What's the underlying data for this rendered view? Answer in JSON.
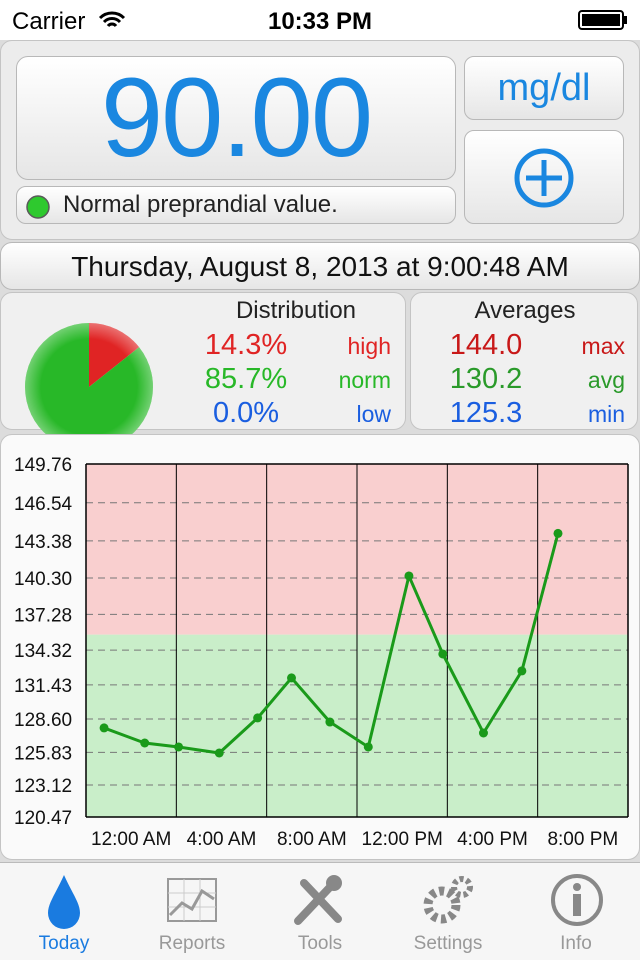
{
  "status_bar": {
    "carrier": "Carrier",
    "time": "10:33 PM"
  },
  "reading": {
    "value": "90.00",
    "unit": "mg/dl",
    "status": "Normal preprandial value."
  },
  "date": "Thursday, August 8, 2013 at 9:00:48 AM",
  "distribution": {
    "title": "Distribution",
    "values": [
      14.3,
      85.7,
      0.0
    ],
    "value_labels": [
      "14.3%",
      "85.7%",
      "0.0%"
    ],
    "labels": [
      "high",
      "norm",
      "low"
    ],
    "colors": [
      "#e02424",
      "#28b828",
      "#1a5ee0"
    ]
  },
  "averages": {
    "title": "Averages",
    "rows": [
      {
        "value": "144.0",
        "label": "max"
      },
      {
        "value": "130.2",
        "label": "avg"
      },
      {
        "value": "125.3",
        "label": "min"
      }
    ]
  },
  "chart_data": {
    "type": "line",
    "x": [
      0.8,
      2.6,
      4.1,
      5.9,
      7.6,
      9.1,
      10.8,
      12.5,
      14.3,
      15.8,
      17.6,
      19.3,
      20.9
    ],
    "values": [
      127.86,
      126.61,
      126.28,
      125.78,
      128.69,
      132.01,
      128.35,
      126.28,
      140.47,
      134.0,
      127.44,
      132.59,
      144.0
    ],
    "color": "#1a9a1a",
    "xlim": [
      0,
      24
    ],
    "xticks": [
      {
        "value": 0,
        "label": "12:00 AM"
      },
      {
        "value": 4,
        "label": "4:00 AM"
      },
      {
        "value": 8,
        "label": "8:00 AM"
      },
      {
        "value": 12,
        "label": "12:00 PM"
      },
      {
        "value": 16,
        "label": "4:00 PM"
      },
      {
        "value": 20,
        "label": "8:00 PM"
      }
    ],
    "ylim": [
      120.47,
      149.76
    ],
    "yticks": [
      120.47,
      123.12,
      125.83,
      {
        "value": 128.6,
        "label": "128.60"
      },
      131.43,
      134.32,
      137.28,
      {
        "value": 140.3,
        "label": "140.30"
      },
      143.38,
      146.54,
      149.76
    ],
    "high_threshold": 135.6,
    "high_color": "#f9cfcf",
    "normal_color": "#c9eec9",
    "grid": true
  },
  "tab_bar": {
    "tabs": [
      "Today",
      "Reports",
      "Tools",
      "Settings",
      "Info"
    ]
  }
}
